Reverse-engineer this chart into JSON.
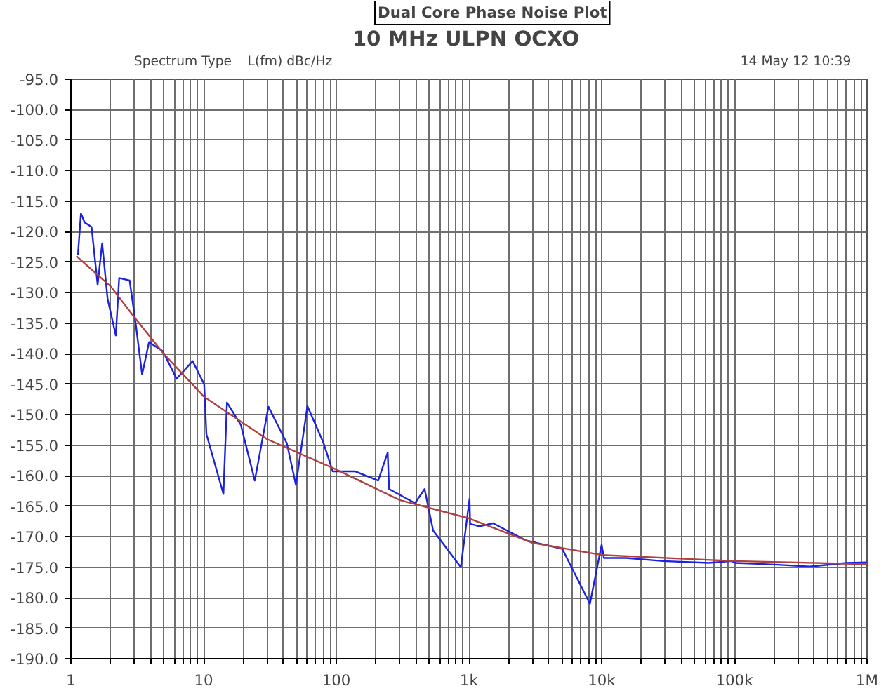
{
  "chart_data": {
    "type": "line",
    "title": "Dual Core Phase Noise Plot",
    "subtitle": "10 MHz ULPN OCXO",
    "ylabel": "L(fm) dBc/Hz",
    "annotations": [
      "Spectrum Type",
      "14 May 12   10:39"
    ],
    "log": "x",
    "grid": true,
    "marker": "none",
    "line_style": "solid",
    "xlim": [
      1,
      1000000
    ],
    "ylim": [
      -190,
      -95
    ],
    "xticks": [
      {
        "value": 1,
        "label": "1"
      },
      {
        "value": 2,
        "label": null
      },
      {
        "value": 3,
        "label": null
      },
      {
        "value": 4,
        "label": null
      },
      {
        "value": 5,
        "label": null
      },
      {
        "value": 6,
        "label": null
      },
      {
        "value": 7,
        "label": null
      },
      {
        "value": 8,
        "label": null
      },
      {
        "value": 9,
        "label": null
      },
      {
        "value": 10,
        "label": "10"
      },
      {
        "value": 20,
        "label": null
      },
      {
        "value": 30,
        "label": null
      },
      {
        "value": 40,
        "label": null
      },
      {
        "value": 50,
        "label": null
      },
      {
        "value": 60,
        "label": null
      },
      {
        "value": 70,
        "label": null
      },
      {
        "value": 80,
        "label": null
      },
      {
        "value": 90,
        "label": null
      },
      {
        "value": 100,
        "label": "100"
      },
      {
        "value": 200,
        "label": null
      },
      {
        "value": 300,
        "label": null
      },
      {
        "value": 400,
        "label": null
      },
      {
        "value": 500,
        "label": null
      },
      {
        "value": 600,
        "label": null
      },
      {
        "value": 700,
        "label": null
      },
      {
        "value": 800,
        "label": null
      },
      {
        "value": 900,
        "label": null
      },
      {
        "value": 1000,
        "label": "1k"
      },
      {
        "value": 2000,
        "label": null
      },
      {
        "value": 3000,
        "label": null
      },
      {
        "value": 4000,
        "label": null
      },
      {
        "value": 5000,
        "label": null
      },
      {
        "value": 6000,
        "label": null
      },
      {
        "value": 7000,
        "label": null
      },
      {
        "value": 8000,
        "label": null
      },
      {
        "value": 9000,
        "label": null
      },
      {
        "value": 10000,
        "label": "10k"
      },
      {
        "value": 20000,
        "label": null
      },
      {
        "value": 30000,
        "label": null
      },
      {
        "value": 40000,
        "label": null
      },
      {
        "value": 50000,
        "label": null
      },
      {
        "value": 60000,
        "label": null
      },
      {
        "value": 70000,
        "label": null
      },
      {
        "value": 80000,
        "label": null
      },
      {
        "value": 90000,
        "label": null
      },
      {
        "value": 100000,
        "label": "100k"
      },
      {
        "value": 200000,
        "label": null
      },
      {
        "value": 300000,
        "label": null
      },
      {
        "value": 400000,
        "label": null
      },
      {
        "value": 500000,
        "label": null
      },
      {
        "value": 600000,
        "label": null
      },
      {
        "value": 700000,
        "label": null
      },
      {
        "value": 800000,
        "label": null
      },
      {
        "value": 900000,
        "label": null
      },
      {
        "value": 1000000,
        "label": "1M"
      }
    ],
    "yticks": [
      {
        "value": -95,
        "label": "-95.0"
      },
      {
        "value": -100,
        "label": "-100.0"
      },
      {
        "value": -105,
        "label": "-105.0"
      },
      {
        "value": -110,
        "label": "-110.0"
      },
      {
        "value": -115,
        "label": "-115.0"
      },
      {
        "value": -120,
        "label": "-120.0"
      },
      {
        "value": -125,
        "label": "-125.0"
      },
      {
        "value": -130,
        "label": "-130.0"
      },
      {
        "value": -135,
        "label": "-135.0"
      },
      {
        "value": -140,
        "label": "-140.0"
      },
      {
        "value": -145,
        "label": "-145.0"
      },
      {
        "value": -150,
        "label": "-150.0"
      },
      {
        "value": -155,
        "label": "-155.0"
      },
      {
        "value": -160,
        "label": "-160.0"
      },
      {
        "value": -165,
        "label": "-165.0"
      },
      {
        "value": -170,
        "label": "-170.0"
      },
      {
        "value": -175,
        "label": "-175.0"
      },
      {
        "value": -180,
        "label": "-180.0"
      },
      {
        "value": -185,
        "label": "-185.0"
      },
      {
        "value": -190,
        "label": "-190.0"
      }
    ],
    "series": [
      {
        "color": "#1a22e0",
        "x": [
          1.13,
          1.19,
          1.27,
          1.43,
          1.59,
          1.72,
          1.89,
          2.18,
          2.31,
          2.77,
          3.05,
          3.44,
          3.88,
          4.93,
          6.26,
          8.27,
          10.1,
          10.5,
          14.1,
          15,
          19.1,
          24.3,
          30.8,
          42.4,
          49.6,
          60.6,
          80.3,
          94,
          139,
          207,
          244,
          250,
          392,
          463,
          537,
          868,
          1010,
          1020,
          1200,
          1520,
          2680,
          5050,
          8160,
          10000,
          10400,
          15300,
          29000,
          64000,
          95000,
          102000,
          215000,
          370000,
          700000,
          1000000
        ],
        "values": [
          -123.8,
          -117,
          -118.5,
          -119.2,
          -128.7,
          -121.9,
          -131,
          -137,
          -127.6,
          -128,
          -134.4,
          -143.4,
          -138.1,
          -139.6,
          -144.1,
          -141.2,
          -145,
          -153.2,
          -163,
          -148,
          -151.7,
          -160.8,
          -148.7,
          -154.7,
          -161.5,
          -148.6,
          -154.7,
          -159.3,
          -159.3,
          -160.8,
          -156.2,
          -162.2,
          -164.5,
          -162.2,
          -169,
          -175,
          -163.8,
          -167.9,
          -168.3,
          -167.8,
          -170.6,
          -172,
          -181,
          -171.3,
          -173.5,
          -173.5,
          -174,
          -174.3,
          -174,
          -174.3,
          -174.6,
          -174.9,
          -174.3,
          -174.2
        ]
      },
      {
        "color": "#b04040",
        "x": [
          1.1,
          2,
          3,
          5,
          10,
          30,
          100,
          300,
          1000,
          3000,
          10000,
          100000,
          1000000
        ],
        "values": [
          -124,
          -129,
          -134,
          -140,
          -147,
          -154,
          -159,
          -164,
          -167,
          -171,
          -173,
          -174,
          -174.5
        ]
      }
    ]
  }
}
